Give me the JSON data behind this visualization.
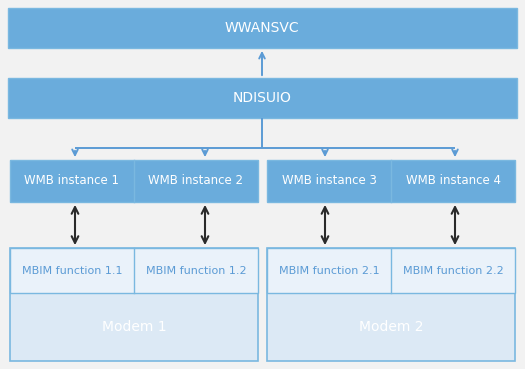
{
  "bg_color": "#f0f0f0",
  "light_blue": "#6aacdc",
  "light_blue2": "#7ab8e0",
  "box_blue": "#6aacdc",
  "modem_bg": "#dce9f5",
  "mbim_bg": "#eaf2fa",
  "border_col": "#7ab8e0",
  "text_white": "#ffffff",
  "text_blue": "#5b9bd5",
  "arrow_blue": "#5b9bd5",
  "arrow_black": "#2a2a2a",
  "wwansvc_label": "WWANSVC",
  "ndis_label": "NDISUIO",
  "wmb1_label": "WMB instance 1",
  "wmb2_label": "WMB instance 2",
  "wmb3_label": "WMB instance 3",
  "wmb4_label": "WMB instance 4",
  "mbim11_label": "MBIM function 1.1",
  "mbim12_label": "MBIM function 1.2",
  "mbim21_label": "MBIM function 2.1",
  "mbim22_label": "MBIM function 2.2",
  "modem1_label": "Modem 1",
  "modem2_label": "Modem 2",
  "fig_w": 5.25,
  "fig_h": 3.69,
  "dpi": 100
}
